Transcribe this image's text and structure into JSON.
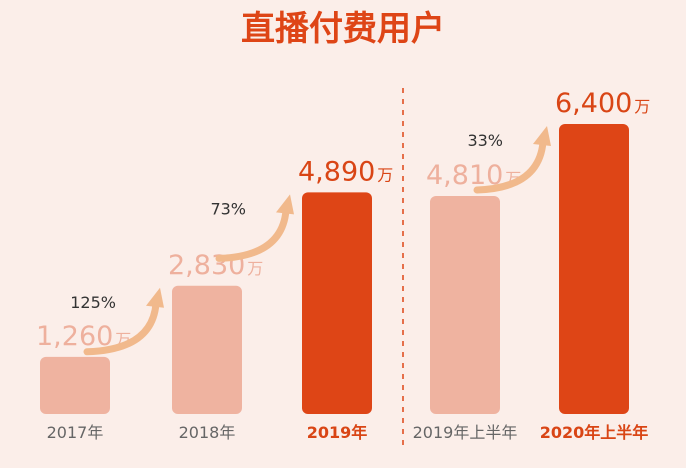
{
  "title": "直播付费用户",
  "colors": {
    "background": "#fbeee9",
    "light_bar": "#efb3a0",
    "dark_bar": "#de4516",
    "light_value_text": "#eeb09d",
    "dark_value_text": "#d94515",
    "arrow": "#f1b98c",
    "title_text": "#de4516",
    "light_category_text": "#666666",
    "divider": "#de4516"
  },
  "chart_data": {
    "type": "bar",
    "title": "直播付费用户",
    "categories": [
      "2017年",
      "2018年",
      "2019年",
      "2019年上半年",
      "2020年上半年"
    ],
    "values": [
      1260,
      2830,
      4890,
      4810,
      6400
    ],
    "value_labels": [
      "1,260",
      "2,830",
      "4,890",
      "4,810",
      "6,400"
    ],
    "unit": "万",
    "highlight": [
      false,
      false,
      true,
      false,
      true
    ],
    "growth_labels": [
      {
        "from": "2017年",
        "to": "2018年",
        "label": "125%"
      },
      {
        "from": "2018年",
        "to": "2019年",
        "label": "73%"
      },
      {
        "from": "2019年上半年",
        "to": "2020年上半年",
        "label": "33%"
      }
    ],
    "divider_between": [
      "2019年",
      "2019年上半年"
    ],
    "ylim": [
      0,
      6400
    ],
    "grid": false,
    "legend": "none"
  }
}
